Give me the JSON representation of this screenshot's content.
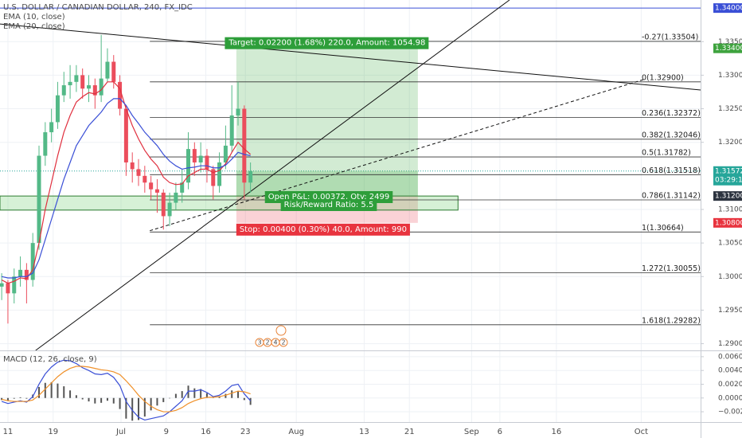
{
  "chart_data": {
    "type": "candlestick",
    "title": "U.S. DOLLAR / CANADIAN DOLLAR, 240, FX_IDC",
    "x": [
      -1.1,
      0,
      1.1,
      2.2,
      3.3,
      4.4,
      5.5,
      6.6,
      7.7,
      8.8,
      9.9,
      11,
      12.1,
      13.2,
      14.3,
      15.4,
      16.5,
      17.6,
      18.7,
      19.8,
      20.9,
      22,
      23.1,
      24.2,
      25.3,
      26.4,
      27.5,
      28.6,
      29.7,
      30.8,
      31.9,
      33,
      34.1,
      35.2,
      36.3,
      37.4,
      38.5,
      39.6,
      40.7,
      41.8,
      42.9
    ],
    "open": [
      1.2985,
      1.299,
      1.2975,
      1.3,
      1.301,
      1.2995,
      1.305,
      1.318,
      1.3215,
      1.323,
      1.327,
      1.3285,
      1.329,
      1.33,
      1.328,
      1.3285,
      1.327,
      1.3295,
      1.332,
      1.329,
      1.325,
      1.317,
      1.316,
      1.315,
      1.314,
      1.313,
      1.3125,
      1.309,
      1.311,
      1.3125,
      1.314,
      1.319,
      1.317,
      1.318,
      1.316,
      1.3135,
      1.317,
      1.3195,
      1.324,
      1.325,
      1.314
    ],
    "high": [
      1.3005,
      1.2995,
      1.3012,
      1.303,
      1.302,
      1.3065,
      1.3195,
      1.323,
      1.325,
      1.329,
      1.3305,
      1.3315,
      1.3315,
      1.331,
      1.33,
      1.3295,
      1.336,
      1.334,
      1.333,
      1.33,
      1.3255,
      1.3185,
      1.3175,
      1.3165,
      1.315,
      1.3145,
      1.313,
      1.3125,
      1.314,
      1.316,
      1.3215,
      1.32,
      1.32,
      1.319,
      1.3165,
      1.3185,
      1.3225,
      1.3285,
      1.329,
      1.3255,
      1.317
    ],
    "low": [
      1.2965,
      1.293,
      1.296,
      1.2985,
      1.296,
      1.2985,
      1.304,
      1.3165,
      1.32,
      1.322,
      1.326,
      1.3265,
      1.3275,
      1.3265,
      1.326,
      1.325,
      1.326,
      1.329,
      1.328,
      1.324,
      1.315,
      1.314,
      1.3135,
      1.3125,
      1.3115,
      1.3095,
      1.307,
      1.3075,
      1.31,
      1.311,
      1.313,
      1.315,
      1.3155,
      1.314,
      1.3115,
      1.3125,
      1.316,
      1.3185,
      1.3225,
      1.3115,
      1.3125
    ],
    "close": [
      1.299,
      1.2975,
      1.3,
      1.301,
      1.2995,
      1.305,
      1.318,
      1.3215,
      1.323,
      1.327,
      1.3285,
      1.329,
      1.33,
      1.328,
      1.3285,
      1.327,
      1.3295,
      1.332,
      1.329,
      1.325,
      1.317,
      1.316,
      1.315,
      1.314,
      1.313,
      1.3125,
      1.309,
      1.311,
      1.3125,
      1.314,
      1.319,
      1.317,
      1.318,
      1.316,
      1.3135,
      1.317,
      1.3195,
      1.324,
      1.325,
      1.314,
      1.3157
    ],
    "up_color": "#53b987",
    "down_color": "#eb4d5c",
    "xlim": [
      -1.4,
      122.5
    ],
    "xticks": [
      {
        "value": 0,
        "label": "11"
      },
      {
        "value": 8,
        "label": "19"
      },
      {
        "value": 20,
        "label": "Jul"
      },
      {
        "value": 28,
        "label": "9"
      },
      {
        "value": 35,
        "label": "16"
      },
      {
        "value": 42,
        "label": "23"
      },
      {
        "value": 51,
        "label": "Aug"
      },
      {
        "value": 63,
        "label": "13"
      },
      {
        "value": 71,
        "label": "21"
      },
      {
        "value": 82,
        "label": "Sep"
      },
      {
        "value": 87,
        "label": "6"
      },
      {
        "value": 97,
        "label": "16"
      },
      {
        "value": 112,
        "label": "Oct"
      }
    ],
    "ylim": [
      1.289,
      1.3412
    ],
    "yticks": [
      {
        "value": 1.335,
        "label": "1.33500"
      },
      {
        "value": 1.33,
        "label": "1.33000"
      },
      {
        "value": 1.325,
        "label": "1.32500"
      },
      {
        "value": 1.32,
        "label": "1.32000"
      },
      {
        "value": 1.31,
        "label": "1.31000"
      },
      {
        "value": 1.305,
        "label": "1.30500"
      },
      {
        "value": 1.3,
        "label": "1.30000"
      },
      {
        "value": 1.295,
        "label": "1.29500"
      },
      {
        "value": 1.29,
        "label": "1.29000"
      }
    ],
    "grid": true,
    "ema": [
      {
        "name": "EMA (10, close)",
        "color": "#e0303f",
        "values": [
          1.2995,
          1.299,
          1.2993,
          1.2998,
          1.2997,
          1.301,
          1.305,
          1.31,
          1.314,
          1.318,
          1.3215,
          1.324,
          1.326,
          1.3268,
          1.3274,
          1.3272,
          1.3278,
          1.329,
          1.329,
          1.328,
          1.325,
          1.3225,
          1.3205,
          1.3188,
          1.3175,
          1.3165,
          1.3148,
          1.314,
          1.3137,
          1.3138,
          1.315,
          1.3155,
          1.316,
          1.316,
          1.3155,
          1.3158,
          1.3168,
          1.3185,
          1.32,
          1.319,
          1.3182
        ]
      },
      {
        "name": "EMA (20, close)",
        "color": "#3a4fd6",
        "values": [
          1.3,
          1.2998,
          1.2998,
          1.3,
          1.3,
          1.3005,
          1.3025,
          1.3055,
          1.3085,
          1.3115,
          1.3145,
          1.317,
          1.3195,
          1.321,
          1.3225,
          1.3235,
          1.3245,
          1.3258,
          1.3265,
          1.3265,
          1.3255,
          1.324,
          1.3228,
          1.3215,
          1.3205,
          1.3195,
          1.3182,
          1.3172,
          1.3165,
          1.316,
          1.3162,
          1.3163,
          1.3165,
          1.3165,
          1.3162,
          1.3162,
          1.3166,
          1.3175,
          1.3185,
          1.3182,
          1.318
        ]
      }
    ],
    "fib": {
      "x_start": 25.1,
      "levels": [
        {
          "label": "-0.27(1.33504)",
          "value": 1.33504
        },
        {
          "label": "0(1.32900)",
          "value": 1.329
        },
        {
          "label": "0.236(1.32372)",
          "value": 1.32372
        },
        {
          "label": "0.382(1.32046)",
          "value": 1.32046
        },
        {
          "label": "0.5(1.31782)",
          "value": 1.31782
        },
        {
          "label": "0.618(1.31518)",
          "value": 1.31518
        },
        {
          "label": "0.786(1.31142)",
          "value": 1.31142
        },
        {
          "label": "1(1.30664)",
          "value": 1.30664
        },
        {
          "label": "1.272(1.30055)",
          "value": 1.30055
        },
        {
          "label": "1.618(1.29282)",
          "value": 1.29282
        }
      ]
    },
    "trendlines": [
      {
        "x": [
          -1.4,
          122.5
        ],
        "y": [
          1.33763,
          1.3278
        ],
        "dashed": false
      },
      {
        "x": [
          4.9,
          88.7
        ],
        "y": [
          1.289,
          1.3412
        ],
        "dashed": false
      },
      {
        "x": [
          25.1,
          112.4
        ],
        "y": [
          1.30683,
          1.32934
        ],
        "dashed": true
      }
    ],
    "zone": {
      "x": [
        -1.4,
        79.6
      ],
      "y": [
        1.3099,
        1.312
      ]
    },
    "horizontal_line": {
      "value": 1.34,
      "color": "#3a4fd6"
    },
    "current_price_line": {
      "value": 1.31572,
      "color": "#26a69a"
    },
    "position": {
      "x": [
        40.4,
        72.5
      ],
      "entry": 1.312,
      "target": 1.334,
      "stop": 1.308,
      "target_text": "Target: 0.02200 (1.68%) 220.0, Amount: 1054.98",
      "pnl_text": "Open P&L: 0.00372, Qty: 2499",
      "ratio_text": "Risk/Reward Ratio: 5.5",
      "stop_text": "Stop: 0.00400 (0.30%) 40.0, Amount: 990"
    },
    "price_labels": [
      {
        "value": 1.34,
        "label": "1.34000",
        "color": "#3a4fd6"
      },
      {
        "value": 1.334,
        "label": "1.33400",
        "color": "#3ea33e"
      },
      {
        "value": 1.31572,
        "label": "1.31572",
        "color": "#26a69a"
      },
      {
        "value": 1.312,
        "label": "1.31200",
        "color": "#2d3440"
      },
      {
        "value": 1.308,
        "label": "1.30800",
        "color": "#e8343f"
      }
    ],
    "countdown": "03:29:13",
    "events": [
      "3",
      "2",
      "4",
      "2"
    ],
    "macd": {
      "title": "MACD (12, 26, close, 9)",
      "ylim": [
        -0.0035,
        0.0068
      ],
      "yticks": [
        {
          "value": 0.006,
          "label": "0.0060"
        },
        {
          "value": 0.004,
          "label": "0.0040"
        },
        {
          "value": 0.002,
          "label": "0.0020"
        },
        {
          "value": 0,
          "label": "0.0000"
        },
        {
          "value": -0.002,
          "label": "−0.0020"
        }
      ],
      "lines": [
        {
          "color": "#3a4fd6",
          "values": [
            -0.0005,
            -0.0008,
            -0.0006,
            -0.0004,
            -0.0006,
            0.0002,
            0.002,
            0.0035,
            0.0045,
            0.0052,
            0.0055,
            0.0054,
            0.005,
            0.0044,
            0.004,
            0.0035,
            0.0034,
            0.0036,
            0.003,
            0.0018,
            -0.0005,
            -0.0018,
            -0.0028,
            -0.0032,
            -0.003,
            -0.0028,
            -0.0026,
            -0.002,
            -0.0012,
            -0.0004,
            0.001,
            0.001,
            0.0012,
            0.0008,
            0.0002,
            0.0004,
            0.001,
            0.0018,
            0.002,
            0.0006,
            -0.0004
          ]
        },
        {
          "color": "#f0912a",
          "values": [
            -0.0002,
            -0.0004,
            -0.0005,
            -0.0005,
            -0.0005,
            -0.0003,
            0.0004,
            0.0013,
            0.0022,
            0.0031,
            0.0038,
            0.0043,
            0.0046,
            0.0046,
            0.0045,
            0.0043,
            0.0041,
            0.004,
            0.0038,
            0.0034,
            0.0025,
            0.0015,
            0.0004,
            -0.0005,
            -0.0012,
            -0.0017,
            -0.002,
            -0.002,
            -0.0018,
            -0.0014,
            -0.0008,
            -0.0004,
            -0.0001,
            0.0001,
            0.0001,
            0.0002,
            0.0004,
            0.0007,
            0.001,
            0.0009,
            0.0006
          ]
        }
      ],
      "histogram": {
        "color": "#555555",
        "values": [
          -0.0003,
          -0.0004,
          -0.0001,
          0.0001,
          -0.0001,
          0.0005,
          0.0016,
          0.0022,
          0.0023,
          0.0021,
          0.0017,
          0.0011,
          0.0004,
          -0.0002,
          -0.0005,
          -0.0008,
          -0.0007,
          -0.0004,
          -0.0008,
          -0.0016,
          -0.003,
          -0.0033,
          -0.0032,
          -0.0027,
          -0.0018,
          -0.0011,
          -0.0006,
          0.0,
          0.0006,
          0.001,
          0.0018,
          0.0014,
          0.0013,
          0.0007,
          0.0001,
          0.0002,
          0.0006,
          0.0011,
          0.001,
          -0.0003,
          -0.001
        ]
      }
    }
  }
}
